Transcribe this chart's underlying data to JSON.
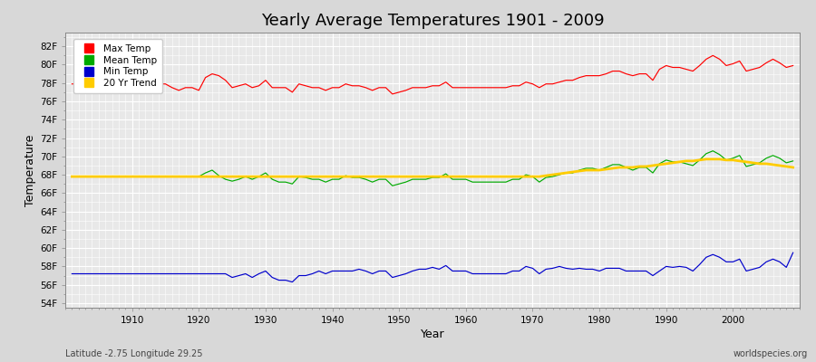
{
  "title": "Yearly Average Temperatures 1901 - 2009",
  "xlabel": "Year",
  "ylabel": "Temperature",
  "x_start": 1901,
  "x_end": 2009,
  "yticks": [
    "54F",
    "56F",
    "58F",
    "60F",
    "62F",
    "64F",
    "66F",
    "68F",
    "70F",
    "72F",
    "74F",
    "76F",
    "78F",
    "80F",
    "82F"
  ],
  "ytick_values": [
    54,
    56,
    58,
    60,
    62,
    64,
    66,
    68,
    70,
    72,
    74,
    76,
    78,
    80,
    82
  ],
  "ylim": [
    53.5,
    83.5
  ],
  "xlim": [
    1900,
    2010
  ],
  "bg_color": "#d8d8d8",
  "plot_bg_color": "#e8e8e8",
  "grid_color": "#ffffff",
  "max_temp_color": "#ff0000",
  "mean_temp_color": "#00aa00",
  "min_temp_color": "#0000cc",
  "trend_color": "#ffcc00",
  "legend_labels": [
    "Max Temp",
    "Mean Temp",
    "Min Temp",
    "20 Yr Trend"
  ],
  "legend_colors": [
    "#ff0000",
    "#00aa00",
    "#0000cc",
    "#ffcc00"
  ],
  "footer_left": "Latitude -2.75 Longitude 29.25",
  "footer_right": "worldspecies.org",
  "max_temps": [
    77.9,
    77.9,
    77.9,
    77.9,
    77.9,
    77.9,
    77.9,
    77.9,
    77.9,
    77.9,
    77.9,
    77.9,
    77.9,
    77.9,
    77.9,
    77.5,
    77.2,
    77.5,
    77.5,
    77.2,
    78.6,
    79.0,
    78.8,
    78.3,
    77.5,
    77.7,
    77.9,
    77.5,
    77.7,
    78.3,
    77.5,
    77.5,
    77.5,
    77.0,
    77.9,
    77.7,
    77.5,
    77.5,
    77.2,
    77.5,
    77.5,
    77.9,
    77.7,
    77.7,
    77.5,
    77.2,
    77.5,
    77.5,
    76.8,
    77.0,
    77.2,
    77.5,
    77.5,
    77.5,
    77.7,
    77.7,
    78.1,
    77.5,
    77.5,
    77.5,
    77.5,
    77.5,
    77.5,
    77.5,
    77.5,
    77.5,
    77.7,
    77.7,
    78.1,
    77.9,
    77.5,
    77.9,
    77.9,
    78.1,
    78.3,
    78.3,
    78.6,
    78.8,
    78.8,
    78.8,
    79.0,
    79.3,
    79.3,
    79.0,
    78.8,
    79.0,
    79.0,
    78.3,
    79.5,
    79.9,
    79.7,
    79.7,
    79.5,
    79.3,
    79.9,
    80.6,
    81.0,
    80.6,
    79.9,
    80.1,
    80.4,
    79.3,
    79.5,
    79.7,
    80.2,
    80.6,
    80.2,
    79.7,
    79.9
  ],
  "mean_temps": [
    67.8,
    67.8,
    67.8,
    67.8,
    67.8,
    67.8,
    67.8,
    67.8,
    67.8,
    67.8,
    67.8,
    67.8,
    67.8,
    67.8,
    67.8,
    67.8,
    67.8,
    67.8,
    67.8,
    67.8,
    68.2,
    68.5,
    67.9,
    67.5,
    67.3,
    67.5,
    67.8,
    67.5,
    67.8,
    68.2,
    67.5,
    67.2,
    67.2,
    67.0,
    67.8,
    67.7,
    67.5,
    67.5,
    67.2,
    67.5,
    67.5,
    67.9,
    67.7,
    67.7,
    67.5,
    67.2,
    67.5,
    67.5,
    66.8,
    67.0,
    67.2,
    67.5,
    67.5,
    67.5,
    67.7,
    67.7,
    68.1,
    67.5,
    67.5,
    67.5,
    67.2,
    67.2,
    67.2,
    67.2,
    67.2,
    67.2,
    67.5,
    67.5,
    68.0,
    67.8,
    67.2,
    67.7,
    67.8,
    68.0,
    68.2,
    68.2,
    68.5,
    68.7,
    68.7,
    68.5,
    68.8,
    69.1,
    69.1,
    68.8,
    68.5,
    68.8,
    68.8,
    68.2,
    69.2,
    69.6,
    69.4,
    69.4,
    69.2,
    69.0,
    69.6,
    70.3,
    70.6,
    70.2,
    69.6,
    69.8,
    70.1,
    68.9,
    69.1,
    69.3,
    69.8,
    70.1,
    69.8,
    69.3,
    69.5
  ],
  "min_temps": [
    57.2,
    57.2,
    57.2,
    57.2,
    57.2,
    57.2,
    57.2,
    57.2,
    57.2,
    57.2,
    57.2,
    57.2,
    57.2,
    57.2,
    57.2,
    57.2,
    57.2,
    57.2,
    57.2,
    57.2,
    57.2,
    57.2,
    57.2,
    57.2,
    56.8,
    57.0,
    57.2,
    56.8,
    57.2,
    57.5,
    56.8,
    56.5,
    56.5,
    56.3,
    57.0,
    57.0,
    57.2,
    57.5,
    57.2,
    57.5,
    57.5,
    57.5,
    57.5,
    57.7,
    57.5,
    57.2,
    57.5,
    57.5,
    56.8,
    57.0,
    57.2,
    57.5,
    57.7,
    57.7,
    57.9,
    57.7,
    58.1,
    57.5,
    57.5,
    57.5,
    57.2,
    57.2,
    57.2,
    57.2,
    57.2,
    57.2,
    57.5,
    57.5,
    58.0,
    57.8,
    57.2,
    57.7,
    57.8,
    58.0,
    57.8,
    57.7,
    57.8,
    57.7,
    57.7,
    57.5,
    57.8,
    57.8,
    57.8,
    57.5,
    57.5,
    57.5,
    57.5,
    57.0,
    57.5,
    58.0,
    57.9,
    58.0,
    57.9,
    57.5,
    58.2,
    59.0,
    59.3,
    59.0,
    58.5,
    58.5,
    58.8,
    57.5,
    57.7,
    57.9,
    58.5,
    58.8,
    58.5,
    57.9,
    59.5
  ],
  "trend_temps": [
    67.8,
    67.8,
    67.8,
    67.8,
    67.8,
    67.8,
    67.8,
    67.8,
    67.8,
    67.8,
    67.8,
    67.8,
    67.8,
    67.8,
    67.8,
    67.8,
    67.8,
    67.8,
    67.8,
    67.8,
    67.8,
    67.8,
    67.8,
    67.8,
    67.8,
    67.8,
    67.8,
    67.8,
    67.8,
    67.8,
    67.8,
    67.8,
    67.8,
    67.8,
    67.8,
    67.8,
    67.8,
    67.8,
    67.8,
    67.8,
    67.8,
    67.8,
    67.8,
    67.8,
    67.8,
    67.8,
    67.8,
    67.8,
    67.8,
    67.8,
    67.8,
    67.8,
    67.8,
    67.8,
    67.8,
    67.8,
    67.8,
    67.8,
    67.8,
    67.8,
    67.8,
    67.8,
    67.8,
    67.8,
    67.8,
    67.8,
    67.8,
    67.8,
    67.8,
    67.8,
    67.8,
    67.9,
    68.0,
    68.1,
    68.2,
    68.3,
    68.4,
    68.5,
    68.5,
    68.5,
    68.6,
    68.7,
    68.8,
    68.8,
    68.8,
    68.9,
    68.9,
    69.0,
    69.1,
    69.2,
    69.3,
    69.4,
    69.5,
    69.5,
    69.6,
    69.7,
    69.7,
    69.7,
    69.6,
    69.6,
    69.5,
    69.4,
    69.3,
    69.2,
    69.2,
    69.1,
    69.0,
    68.9,
    68.8
  ]
}
